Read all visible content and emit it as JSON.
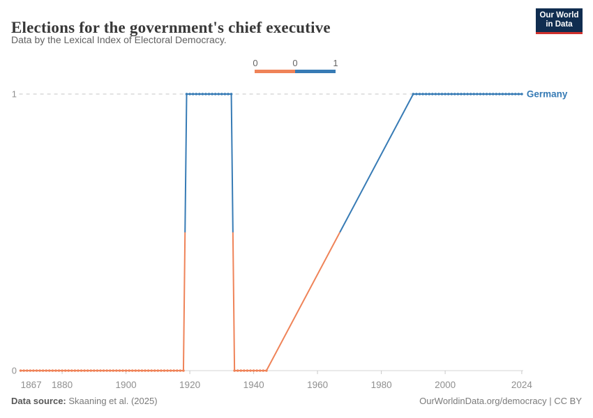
{
  "header": {
    "title": "Elections for the government's chief executive",
    "subtitle": "Data by the Lexical Index of Electoral Democracy.",
    "logo": {
      "line1": "Our World",
      "line2": "in Data",
      "bg": "#102d50",
      "accent": "#d0312d"
    }
  },
  "legend": {
    "edge_labels": [
      "0",
      "0",
      "1"
    ],
    "bins": [
      {
        "value": 0,
        "color": "#ef8358"
      },
      {
        "value": 1,
        "color": "#377bb5"
      }
    ]
  },
  "chart_data": {
    "type": "line",
    "title": "Elections for the government's chief executive",
    "entity": "Germany",
    "series_label": "Germany",
    "xlim": [
      1867,
      2024
    ],
    "ylim": [
      0,
      1
    ],
    "x_ticks": [
      1867,
      1880,
      1900,
      1920,
      1940,
      1960,
      1980,
      2000,
      2024
    ],
    "y_ticks": [
      0,
      1
    ],
    "grid": "dashed-at-1-solid-axis-at-0",
    "legend_position": "top-center",
    "threshold": 0.5,
    "colors": {
      "value_0": "#ef8358",
      "value_1": "#377bb5"
    },
    "segments": [
      {
        "type": "flat",
        "from": 1867,
        "to": 1918,
        "value": 0,
        "markers": true
      },
      {
        "type": "ramp",
        "from": 1918,
        "to": 1919,
        "v0": 0,
        "v1": 1
      },
      {
        "type": "flat",
        "from": 1919,
        "to": 1933,
        "value": 1,
        "markers": true
      },
      {
        "type": "ramp",
        "from": 1933,
        "to": 1934,
        "v0": 1,
        "v1": 0
      },
      {
        "type": "flat",
        "from": 1934,
        "to": 1944,
        "value": 0,
        "markers": true
      },
      {
        "type": "ramp",
        "from": 1944,
        "to": 1990,
        "v0": 0,
        "v1": 1
      },
      {
        "type": "flat",
        "from": 1990,
        "to": 2024,
        "value": 1,
        "markers": true
      }
    ]
  },
  "footer": {
    "source_label": "Data source:",
    "source_value": " Skaaning et al. (2025)",
    "credit": "OurWorldinData.org/democracy | CC BY"
  }
}
